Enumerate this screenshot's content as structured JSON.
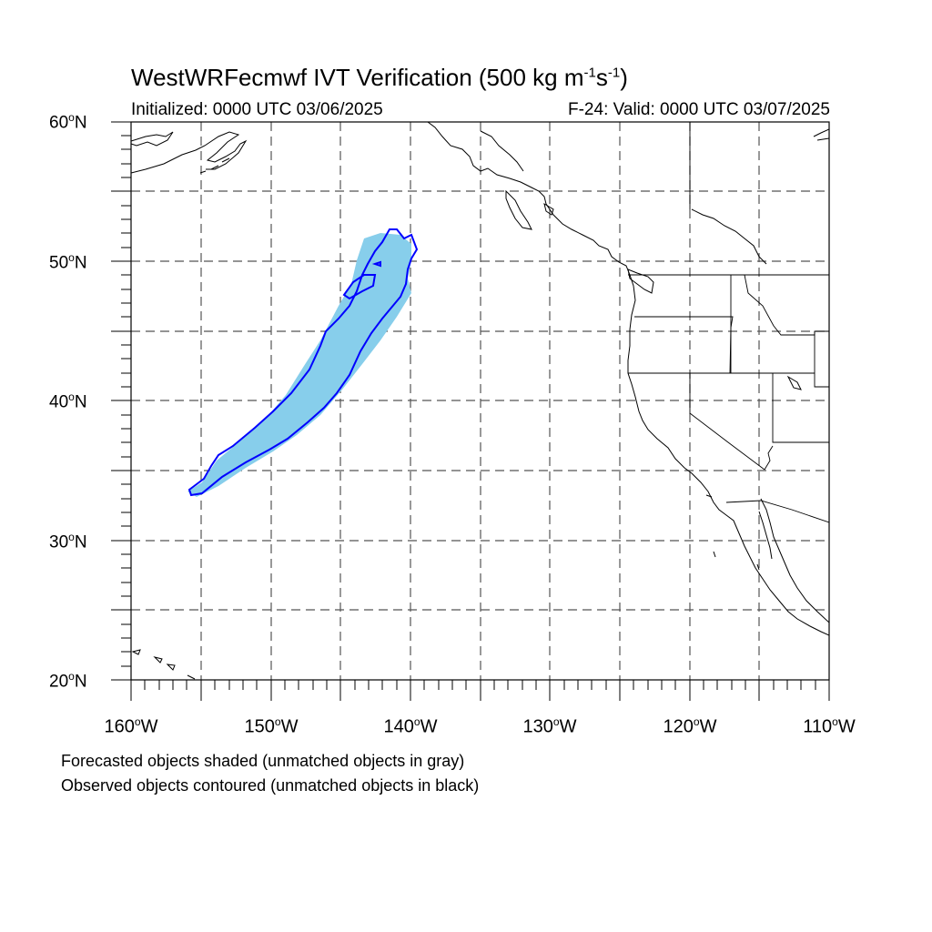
{
  "title": {
    "main": "WestWRFecmwf IVT Verification (500 kg m",
    "exp1": "-1",
    "mid": "s",
    "exp2": "-1",
    "close": ")"
  },
  "initialized": "Initialized: 0000 UTC 03/06/2025",
  "valid": "F-24: Valid: 0000 UTC 03/07/2025",
  "lat_labels": [
    {
      "num": "60",
      "deg": "o",
      "hemi": "N"
    },
    {
      "num": "50",
      "deg": "o",
      "hemi": "N"
    },
    {
      "num": "40",
      "deg": "o",
      "hemi": "N"
    },
    {
      "num": "30",
      "deg": "o",
      "hemi": "N"
    },
    {
      "num": "20",
      "deg": "o",
      "hemi": "N"
    }
  ],
  "lon_labels": [
    {
      "num": "160",
      "deg": "o",
      "hemi": "W"
    },
    {
      "num": "150",
      "deg": "o",
      "hemi": "W"
    },
    {
      "num": "140",
      "deg": "o",
      "hemi": "W"
    },
    {
      "num": "130",
      "deg": "o",
      "hemi": "W"
    },
    {
      "num": "120",
      "deg": "o",
      "hemi": "W"
    },
    {
      "num": "110",
      "deg": "o",
      "hemi": "W"
    }
  ],
  "notes": {
    "forecast": "Forecasted objects shaded (unmatched objects in gray)",
    "observed": "Observed objects contoured (unmatched objects in black)"
  },
  "colors": {
    "forecast_fill": "#87ceeb",
    "observed_contour": "#0000ff",
    "grid": "#555555"
  }
}
